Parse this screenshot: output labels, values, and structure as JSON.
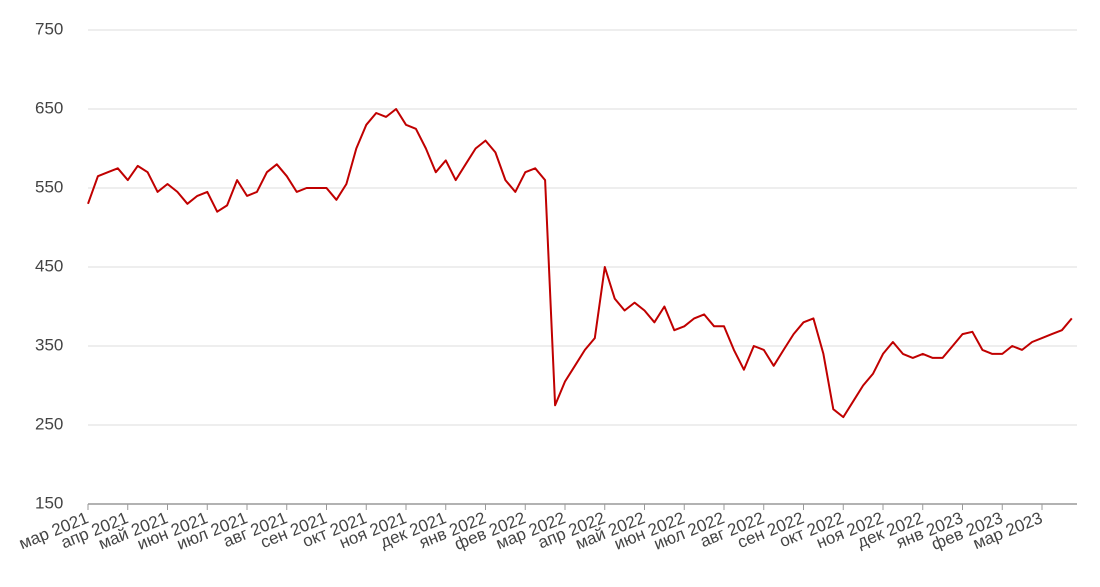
{
  "chart_data": {
    "type": "line",
    "categories": [
      "мар 2021",
      null,
      null,
      null,
      "апр 2021",
      null,
      null,
      null,
      "май 2021",
      null,
      null,
      null,
      "июн 2021",
      null,
      null,
      null,
      "июл 2021",
      null,
      null,
      null,
      "авг 2021",
      null,
      null,
      null,
      "сен 2021",
      null,
      null,
      null,
      "окт 2021",
      null,
      null,
      null,
      "ноя 2021",
      null,
      null,
      null,
      "дек 2021",
      null,
      null,
      null,
      "янв 2022",
      null,
      null,
      null,
      "фев 2022",
      null,
      null,
      null,
      "мар 2022",
      null,
      null,
      null,
      "апр 2022",
      null,
      null,
      null,
      "май 2022",
      null,
      null,
      null,
      "июн 2022",
      null,
      null,
      null,
      "июл 2022",
      null,
      null,
      null,
      "авг 2022",
      null,
      null,
      null,
      "сен 2022",
      null,
      null,
      null,
      "окт 2022",
      null,
      null,
      null,
      "ноя 2022",
      null,
      null,
      null,
      "дек 2022",
      null,
      null,
      null,
      "янв 2023",
      null,
      null,
      null,
      "фев 2023",
      null,
      null,
      null,
      "мар 2023",
      null,
      null,
      null
    ],
    "values": [
      530,
      565,
      570,
      575,
      560,
      578,
      570,
      545,
      555,
      545,
      530,
      540,
      545,
      520,
      528,
      560,
      540,
      545,
      570,
      580,
      565,
      545,
      550,
      550,
      550,
      535,
      555,
      600,
      630,
      645,
      640,
      650,
      630,
      625,
      600,
      570,
      585,
      560,
      580,
      600,
      610,
      595,
      560,
      545,
      570,
      575,
      560,
      275,
      305,
      325,
      345,
      360,
      450,
      410,
      395,
      405,
      395,
      380,
      400,
      370,
      375,
      385,
      390,
      375,
      375,
      345,
      320,
      350,
      345,
      325,
      345,
      365,
      380,
      385,
      340,
      270,
      260,
      280,
      300,
      315,
      340,
      355,
      340,
      335,
      340,
      335,
      335,
      350,
      365,
      368,
      345,
      340,
      340,
      350,
      345,
      355,
      360,
      365,
      370,
      385
    ],
    "color": "#c00000",
    "ylim": [
      150,
      750
    ],
    "yticks": [
      150,
      250,
      350,
      450,
      550,
      650,
      750
    ],
    "grid": true
  }
}
